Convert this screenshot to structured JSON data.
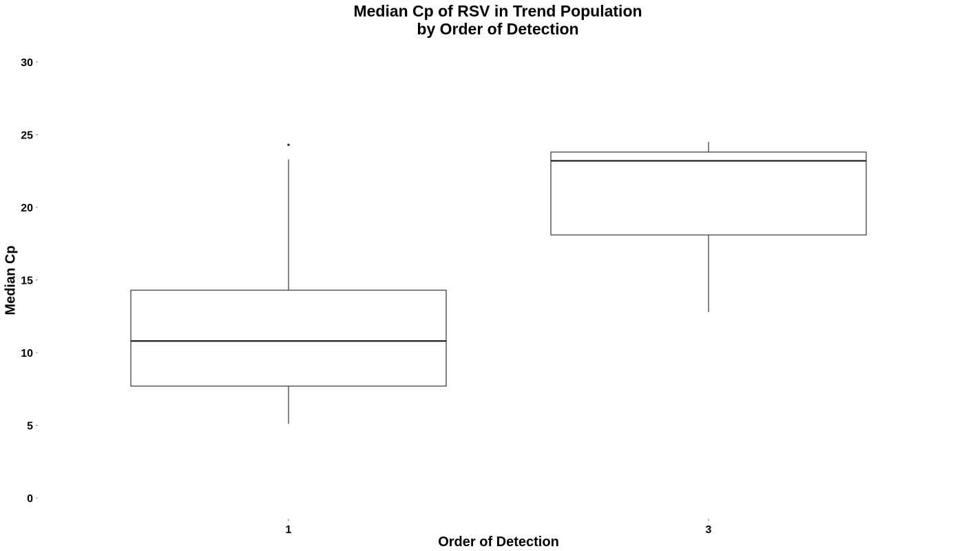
{
  "chart_data": {
    "type": "boxplot",
    "title": "Median Cp of RSV in Trend Population\nby Order of Detection",
    "title_lines": [
      "Median Cp of RSV in Trend Population",
      "by Order of Detection"
    ],
    "xlabel": "Order of Detection",
    "ylabel": "Median Cp",
    "ylim": [
      0,
      30
    ],
    "yticks": [
      0,
      5,
      10,
      15,
      20,
      25,
      30
    ],
    "categories": [
      "1",
      "3"
    ],
    "boxes": [
      {
        "category": "1",
        "whisker_low": 5.1,
        "q1": 7.7,
        "median": 10.8,
        "q3": 14.3,
        "whisker_high": 23.3,
        "outliers": [
          24.3
        ]
      },
      {
        "category": "3",
        "whisker_low": 12.8,
        "q1": 18.1,
        "median": 23.2,
        "q3": 23.8,
        "whisker_high": 24.5,
        "outliers": []
      }
    ],
    "grid": false,
    "legend": "none"
  }
}
